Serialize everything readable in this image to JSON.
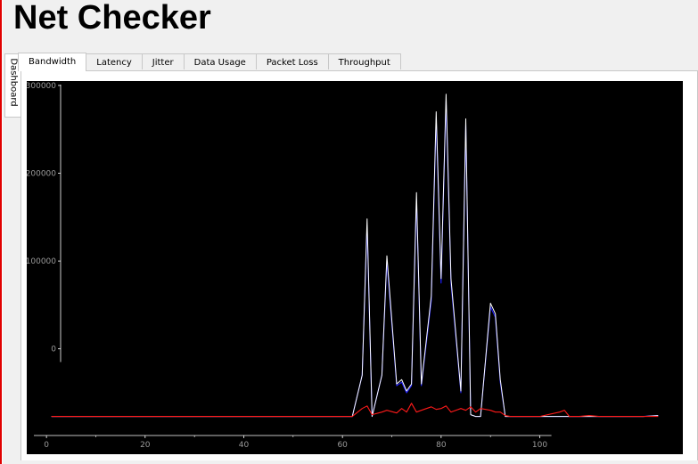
{
  "app": {
    "title": "Net Checker"
  },
  "sidebar": {
    "tab_label": "Dashboard"
  },
  "tabs": [
    "Bandwidth",
    "Latency",
    "Jitter",
    "Data Usage",
    "Packet Loss",
    "Throughput"
  ],
  "active_tab": "Bandwidth",
  "colors": {
    "background": "#000000",
    "axis": "#ffffff",
    "tick_text": "#9a9a9a",
    "series_total": "#ffffff",
    "series_download": "#2020ff",
    "series_upload": "#ff1a1a"
  },
  "chart_data": {
    "type": "line",
    "xlim": [
      -4,
      129
    ],
    "ylim": [
      -120000,
      305000
    ],
    "x_ticks": [
      0,
      20,
      40,
      60,
      80,
      100
    ],
    "y_ticks": [
      0,
      100000,
      200000,
      300000
    ],
    "grid": false,
    "x": [
      1,
      62,
      64,
      65,
      66,
      68,
      69,
      71,
      72,
      73,
      74,
      75,
      76,
      78,
      79,
      80,
      81,
      82,
      84,
      85,
      86,
      87,
      88,
      90,
      91,
      92,
      93,
      94,
      95,
      96,
      100,
      104,
      105,
      106,
      108,
      110,
      112,
      115,
      118,
      121,
      124
    ],
    "series": [
      {
        "color": "#ffffff",
        "values": [
          -77000,
          -77000,
          -30000,
          148000,
          -77000,
          -30000,
          106000,
          -40000,
          -35000,
          -48000,
          -40000,
          178000,
          -40000,
          60000,
          270000,
          80000,
          290000,
          80000,
          -48000,
          262000,
          -75000,
          -77000,
          -77000,
          52000,
          40000,
          -35000,
          -77000,
          -77000,
          -77000,
          -77000,
          -77000,
          -77000,
          -77000,
          -77000,
          -77000,
          -77000,
          -77000,
          -77000,
          -77000,
          -77000,
          -76000
        ]
      },
      {
        "color": "#2020ff",
        "values": [
          -77000,
          -77000,
          -30000,
          140000,
          -77000,
          -30000,
          100000,
          -42000,
          -38000,
          -50000,
          -42000,
          170000,
          -42000,
          55000,
          262000,
          75000,
          282000,
          75000,
          -50000,
          255000,
          -75000,
          -77000,
          -77000,
          48000,
          36000,
          -38000,
          -77000,
          -77000,
          -77000,
          -77000,
          -77000,
          -77000,
          -77000,
          -77000,
          -77000,
          -77000,
          -77000,
          -77000,
          -77000,
          -77000,
          -76000
        ]
      },
      {
        "color": "#ff1a1a",
        "values": [
          -77000,
          -77000,
          -68000,
          -65000,
          -75000,
          -72000,
          -70000,
          -73000,
          -68000,
          -72000,
          -62000,
          -72000,
          -70000,
          -66000,
          -69000,
          -68000,
          -65000,
          -72000,
          -68000,
          -70000,
          -66000,
          -72000,
          -68000,
          -70000,
          -72000,
          -72000,
          -76000,
          -77000,
          -77000,
          -77000,
          -77000,
          -72000,
          -70000,
          -77000,
          -77000,
          -76000,
          -77000,
          -77000,
          -77000,
          -77000,
          -77000
        ]
      }
    ]
  }
}
